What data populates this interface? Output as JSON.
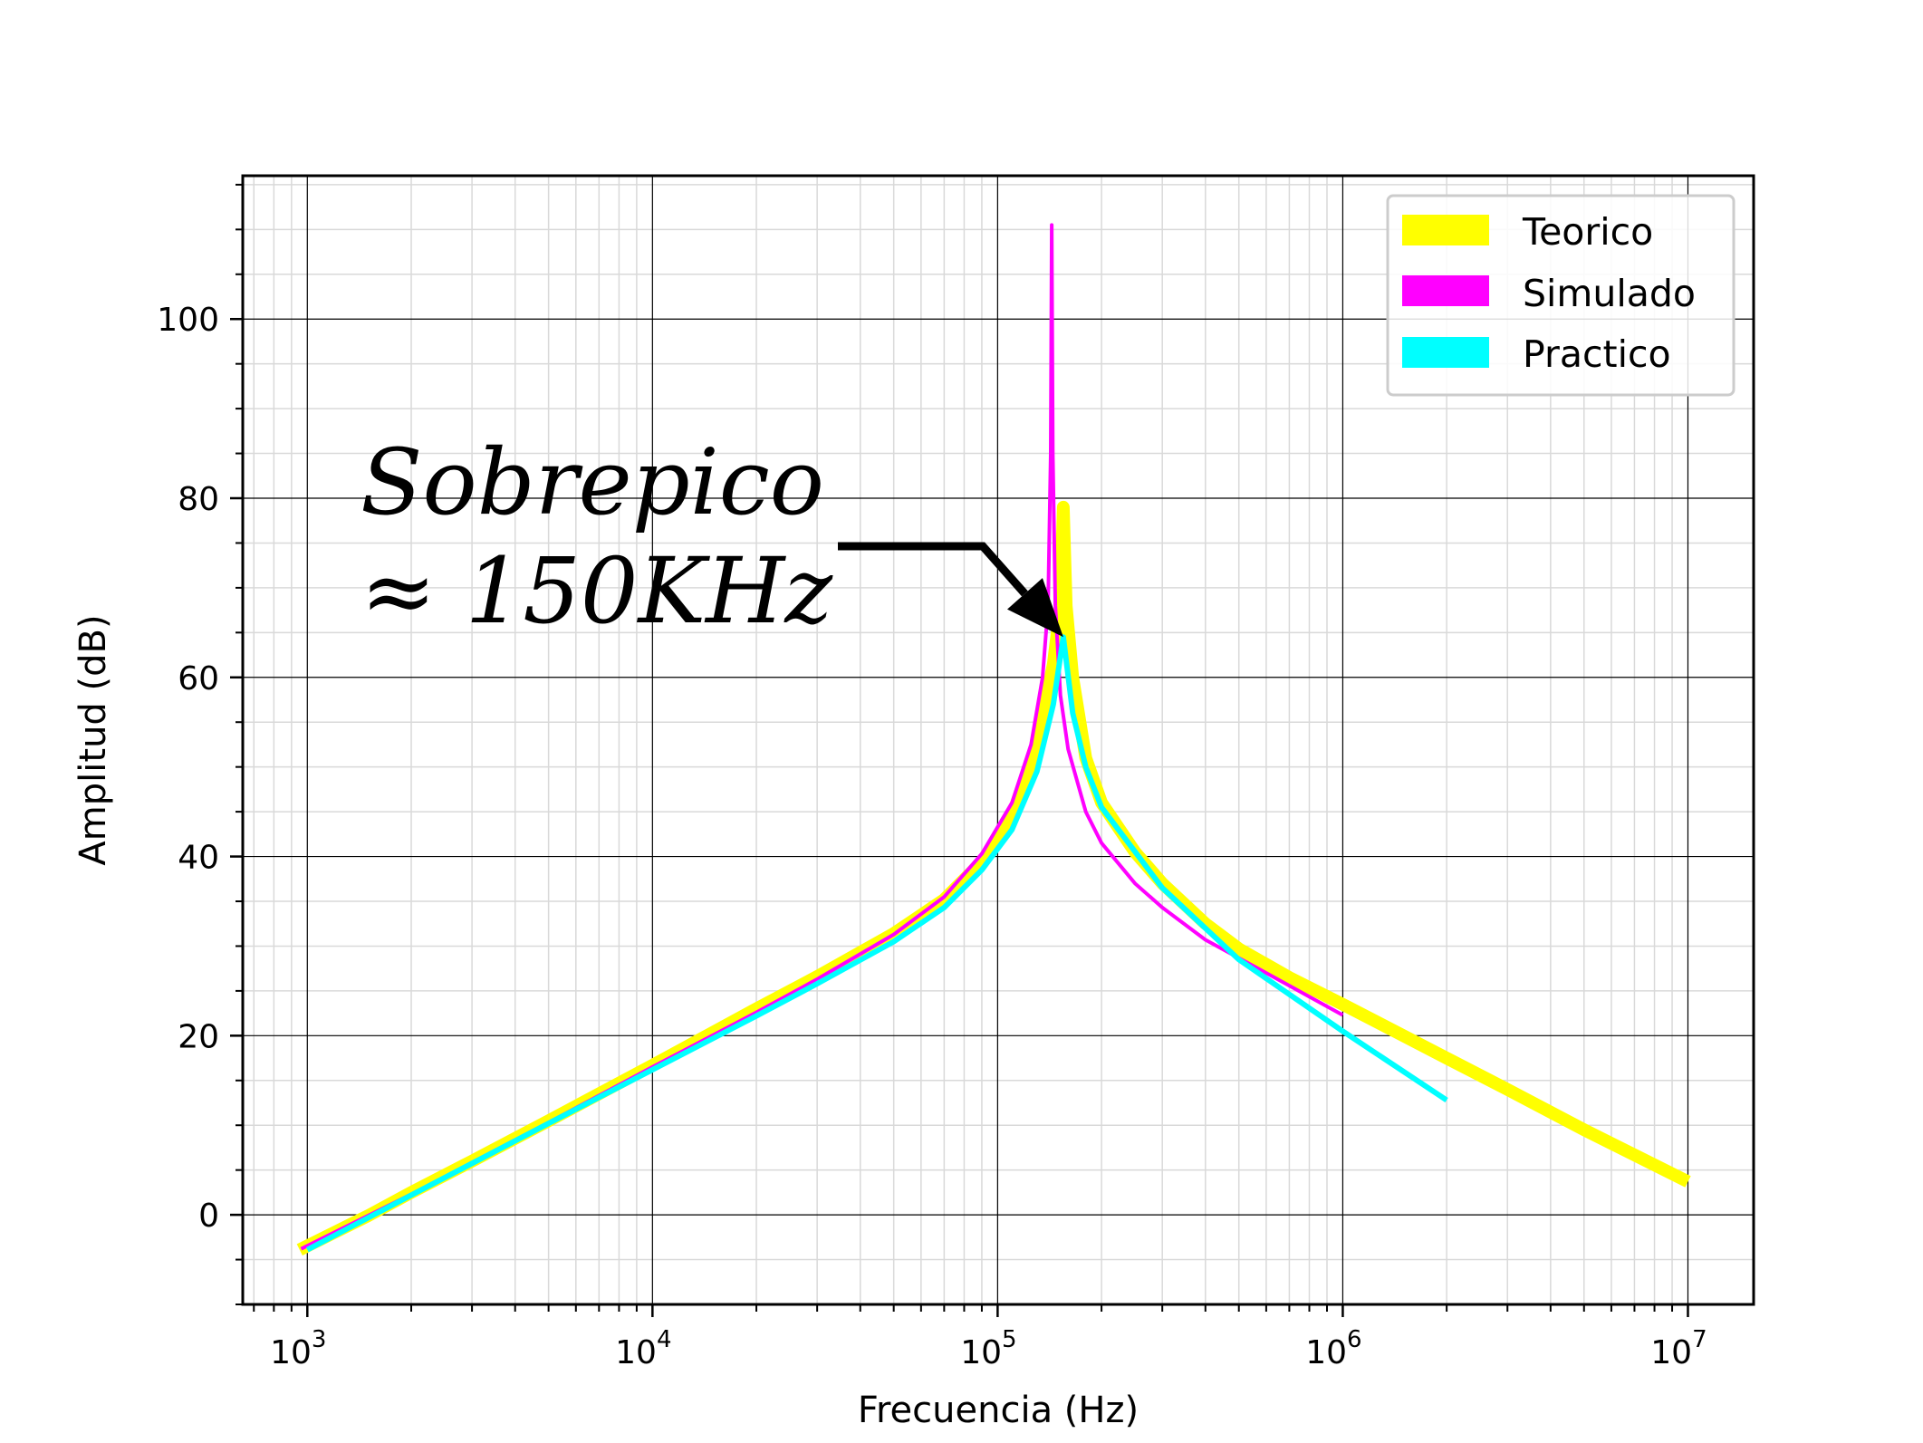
{
  "chart_data": {
    "type": "line",
    "xlabel": "Frecuencia (Hz)",
    "ylabel": "Amplitud (dB)",
    "xscale": "log",
    "xlim": [
      650,
      15500000
    ],
    "ylim": [
      -10,
      116
    ],
    "x_ticks": [
      {
        "value": 1000,
        "base": "10",
        "exp": "3"
      },
      {
        "value": 10000,
        "base": "10",
        "exp": "4"
      },
      {
        "value": 100000,
        "base": "10",
        "exp": "5"
      },
      {
        "value": 1000000,
        "base": "10",
        "exp": "6"
      },
      {
        "value": 10000000,
        "base": "10",
        "exp": "7"
      }
    ],
    "y_ticks": [
      0,
      20,
      40,
      60,
      80,
      100
    ],
    "grid": true,
    "legend_position": "top-right",
    "annotation": {
      "line1": "Sobrepico",
      "line2": "≈ 150KHz",
      "target": {
        "x": 155000,
        "y": 64.5
      }
    },
    "series": [
      {
        "name": "Teorico",
        "color": "#ffff00",
        "points": [
          [
            950,
            -3.9
          ],
          [
            1500,
            -0.1
          ],
          [
            2000,
            2.5
          ],
          [
            3000,
            6.0
          ],
          [
            5000,
            10.5
          ],
          [
            10000,
            16.7
          ],
          [
            20000,
            23.0
          ],
          [
            30000,
            26.6
          ],
          [
            50000,
            31.4
          ],
          [
            70000,
            35.2
          ],
          [
            90000,
            39.4
          ],
          [
            110000,
            44.5
          ],
          [
            130000,
            52.5
          ],
          [
            145000,
            61.5
          ],
          [
            152000,
            68.0
          ],
          [
            155000,
            79.0
          ],
          [
            158000,
            68.0
          ],
          [
            165000,
            60.0
          ],
          [
            180000,
            51.0
          ],
          [
            200000,
            46.0
          ],
          [
            250000,
            40.5
          ],
          [
            300000,
            37.0
          ],
          [
            400000,
            32.5
          ],
          [
            500000,
            29.7
          ],
          [
            700000,
            26.5
          ],
          [
            1000000,
            23.5
          ],
          [
            2000000,
            17.5
          ],
          [
            3000000,
            14.0
          ],
          [
            5000000,
            9.5
          ],
          [
            10000000,
            3.7
          ]
        ]
      },
      {
        "name": "Simulado",
        "color": "#ff00ff",
        "points": [
          [
            960,
            -3.8
          ],
          [
            2000,
            2.3
          ],
          [
            5000,
            10.3
          ],
          [
            10000,
            16.5
          ],
          [
            20000,
            22.6
          ],
          [
            30000,
            26.3
          ],
          [
            50000,
            31.3
          ],
          [
            70000,
            35.5
          ],
          [
            90000,
            40.3
          ],
          [
            110000,
            46.0
          ],
          [
            125000,
            52.5
          ],
          [
            135000,
            60.0
          ],
          [
            140000,
            68.0
          ],
          [
            142500,
            85.0
          ],
          [
            143500,
            110.5
          ],
          [
            144500,
            85.0
          ],
          [
            147000,
            68.0
          ],
          [
            152000,
            58.0
          ],
          [
            160000,
            52.0
          ],
          [
            180000,
            45.0
          ],
          [
            200000,
            41.5
          ],
          [
            250000,
            37.0
          ],
          [
            300000,
            34.3
          ],
          [
            400000,
            30.7
          ],
          [
            600000,
            27.0
          ],
          [
            1000000,
            22.3
          ]
        ]
      },
      {
        "name": "Practico",
        "color": "#00ffff",
        "points": [
          [
            1000,
            -3.9
          ],
          [
            2000,
            2.2
          ],
          [
            5000,
            10.2
          ],
          [
            10000,
            16.2
          ],
          [
            20000,
            22.2
          ],
          [
            30000,
            25.8
          ],
          [
            50000,
            30.5
          ],
          [
            70000,
            34.3
          ],
          [
            90000,
            38.5
          ],
          [
            110000,
            43.0
          ],
          [
            130000,
            49.5
          ],
          [
            145000,
            57.0
          ],
          [
            155000,
            64.5
          ],
          [
            165000,
            56.0
          ],
          [
            180000,
            50.0
          ],
          [
            200000,
            45.5
          ],
          [
            300000,
            36.5
          ],
          [
            500000,
            28.5
          ],
          [
            1000000,
            20.5
          ],
          [
            2000000,
            12.8
          ]
        ]
      }
    ]
  }
}
